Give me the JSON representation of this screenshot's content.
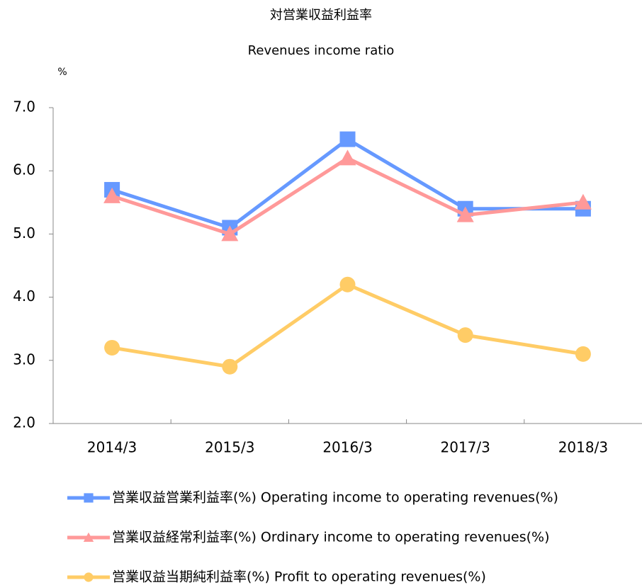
{
  "chart_data": {
    "type": "line",
    "title": "対営業収益利益率",
    "subtitle": "Revenues income ratio",
    "y_axis_label": "%",
    "categories": [
      "2014/3",
      "2015/3",
      "2016/3",
      "2017/3",
      "2018/3"
    ],
    "series": [
      {
        "name": "営業収益営業利益率(%) Operating income to operating revenues(%)",
        "color": "#6699ff",
        "marker": "square",
        "values": [
          5.7,
          5.1,
          6.5,
          5.4,
          5.4
        ]
      },
      {
        "name": "営業収益経常利益率(%) Ordinary income to operating revenues(%)",
        "color": "#ff9999",
        "marker": "triangle",
        "values": [
          5.6,
          5.0,
          6.2,
          5.3,
          5.5
        ]
      },
      {
        "name": "営業収益当期純利益率(%) Profit to operating revenues(%)",
        "color": "#ffcc66",
        "marker": "circle",
        "values": [
          3.2,
          2.9,
          4.2,
          3.4,
          3.1
        ]
      }
    ],
    "ylim": [
      2,
      7
    ],
    "yticks": [
      {
        "value": 2,
        "label": "2.0"
      },
      {
        "value": 3,
        "label": "3.0"
      },
      {
        "value": 4,
        "label": "4.0"
      },
      {
        "value": 5,
        "label": "5.0"
      },
      {
        "value": 6,
        "label": "6.0"
      },
      {
        "value": 7,
        "label": "7.0"
      }
    ],
    "grid": false,
    "legend": "bottom"
  }
}
